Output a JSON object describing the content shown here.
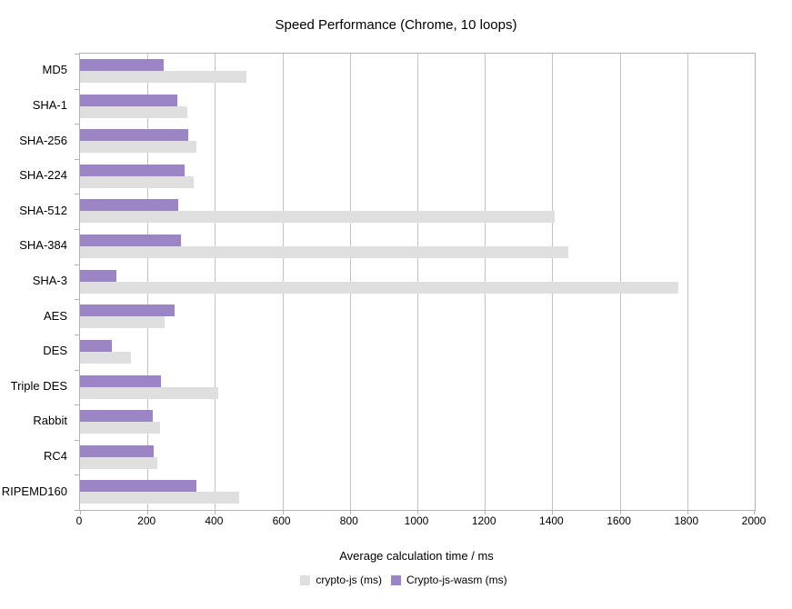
{
  "title": "Speed Performance (Chrome, 10 loops)",
  "x_axis": {
    "label": "Average calculation time / ms",
    "min": 0,
    "max": 2000,
    "tick_step": 200,
    "tick_labels": [
      "0",
      "200",
      "400",
      "600",
      "800",
      "1000",
      "1200",
      "1400",
      "1600",
      "1800",
      "2000"
    ]
  },
  "legend": {
    "items": [
      {
        "label": "crypto-js (ms)",
        "color": "#dfdfdf"
      },
      {
        "label": "Crypto-js-wasm (ms)",
        "color": "#9c85c4"
      }
    ]
  },
  "colors": {
    "crypto_js_bar": "#dfdfdf",
    "crypto_js_wasm_bar": "#9c85c4",
    "axis_line": "#b3b3b3",
    "gridline": "#c2c2c2",
    "background": "#ffffff"
  },
  "chart_data": {
    "type": "bar",
    "orientation": "horizontal",
    "title": "Speed Performance (Chrome, 10 loops)",
    "xlabel": "Average calculation time / ms",
    "xlim": [
      0,
      2000
    ],
    "grid": true,
    "legend_position": "bottom",
    "categories": [
      "MD5",
      "SHA-1",
      "SHA-256",
      "SHA-224",
      "SHA-512",
      "SHA-384",
      "SHA-3",
      "AES",
      "DES",
      "Triple DES",
      "Rabbit",
      "RC4",
      "RIPEMD160"
    ],
    "series": [
      {
        "name": "Crypto-js-wasm (ms)",
        "color": "#9c85c4",
        "values": [
          248,
          289,
          320,
          311,
          290,
          300,
          107,
          279,
          94,
          240,
          215,
          219,
          346
        ]
      },
      {
        "name": "crypto-js (ms)",
        "color": "#dfdfdf",
        "values": [
          492,
          318,
          344,
          337,
          1408,
          1448,
          1774,
          251,
          151,
          409,
          236,
          230,
          473
        ]
      }
    ]
  }
}
